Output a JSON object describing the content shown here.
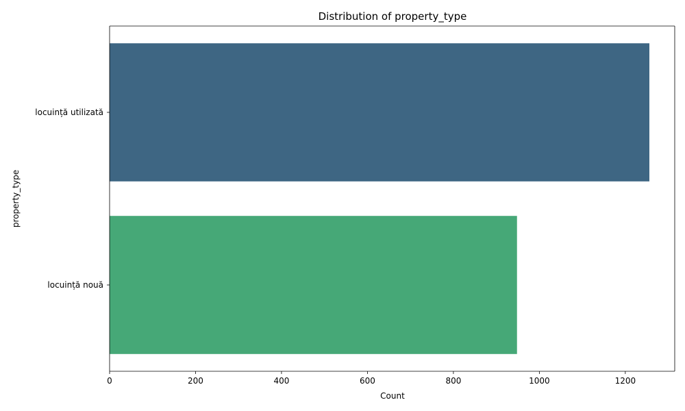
{
  "chart_data": {
    "type": "bar",
    "orientation": "horizontal",
    "title": "Distribution of property_type",
    "xlabel": "Count",
    "ylabel": "property_type",
    "categories": [
      "locuință utilizată",
      "locuință nouă"
    ],
    "values": [
      1256,
      948
    ],
    "xlim": [
      0,
      1315
    ],
    "xticks": [
      0,
      200,
      400,
      600,
      800,
      1000,
      1200
    ],
    "grid": false,
    "legend": "none",
    "colors": [
      "#3e6683",
      "#46a877"
    ]
  }
}
